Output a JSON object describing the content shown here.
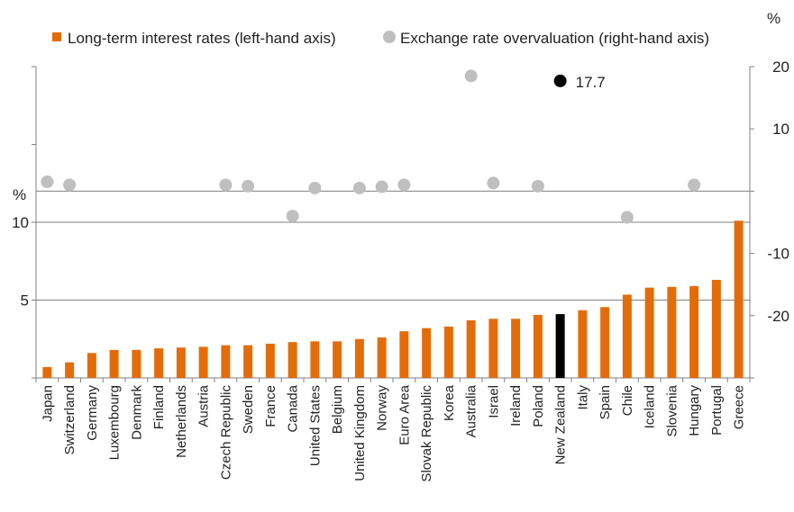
{
  "chart_data": {
    "type": "bar",
    "legend": [
      {
        "label": "Long-term interest rates (left-hand axis)",
        "color": "#e36c0a"
      },
      {
        "label": "Exchange rate overvaluation (right-hand axis)",
        "color": "#bfbfbf"
      }
    ],
    "left_unit": "%",
    "right_unit": "%",
    "left_ticks": [
      "5",
      "10"
    ],
    "right_ticks": [
      "20",
      "10",
      "-10",
      "-20"
    ],
    "categories": [
      "Japan",
      "Switzerland",
      "Germany",
      "Luxembourg",
      "Denmark",
      "Finland",
      "Netherlands",
      "Austria",
      "Czech Republic",
      "Sweden",
      "France",
      "Canada",
      "United States",
      "Belgium",
      "United Kingdom",
      "Norway",
      "Euro Area",
      "Slovak Republic",
      "Korea",
      "Australia",
      "Israel",
      "Ireland",
      "Poland",
      "New Zealand",
      "Italy",
      "Spain",
      "Chile",
      "Iceland",
      "Slovenia",
      "Hungary",
      "Portugal",
      "Greece"
    ],
    "series": [
      {
        "name": "Long-term interest rates (left-hand axis)",
        "type": "bar",
        "axis": "left",
        "color": "#e36c0a",
        "highlight_color": "#000000",
        "values": [
          0.7,
          1.0,
          1.6,
          1.8,
          1.8,
          1.9,
          1.95,
          2.0,
          2.1,
          2.1,
          2.2,
          2.3,
          2.35,
          2.35,
          2.5,
          2.6,
          3.0,
          3.2,
          3.3,
          3.7,
          3.8,
          3.8,
          4.05,
          4.1,
          4.35,
          4.55,
          5.35,
          5.8,
          5.85,
          5.9,
          6.3,
          10.1
        ]
      },
      {
        "name": "Exchange rate overvaluation (right-hand axis)",
        "type": "scatter",
        "axis": "right",
        "color": "#bfbfbf",
        "highlight_color": "#000000",
        "points": [
          {
            "category": "Japan",
            "value": 1.5
          },
          {
            "category": "Switzerland",
            "value": 1.0
          },
          {
            "category": "Czech Republic",
            "value": 1.0
          },
          {
            "category": "Sweden",
            "value": 0.8
          },
          {
            "category": "Canada",
            "value": -4.0
          },
          {
            "category": "United States",
            "value": 0.5
          },
          {
            "category": "United Kingdom",
            "value": 0.5
          },
          {
            "category": "Norway",
            "value": 0.7
          },
          {
            "category": "Euro Area",
            "value": 1.0
          },
          {
            "category": "Australia",
            "value": 18.5
          },
          {
            "category": "Israel",
            "value": 1.3
          },
          {
            "category": "Poland",
            "value": 0.8
          },
          {
            "category": "New Zealand",
            "value": 17.7,
            "label": "17.7"
          },
          {
            "category": "Chile",
            "value": -4.2
          },
          {
            "category": "Hungary",
            "value": 1.0
          }
        ]
      }
    ],
    "highlight_category": "New Zealand",
    "ylim_left": [
      0,
      20
    ],
    "ylim_right": [
      -30,
      20
    ],
    "xlabel": "",
    "ylabel": ""
  }
}
